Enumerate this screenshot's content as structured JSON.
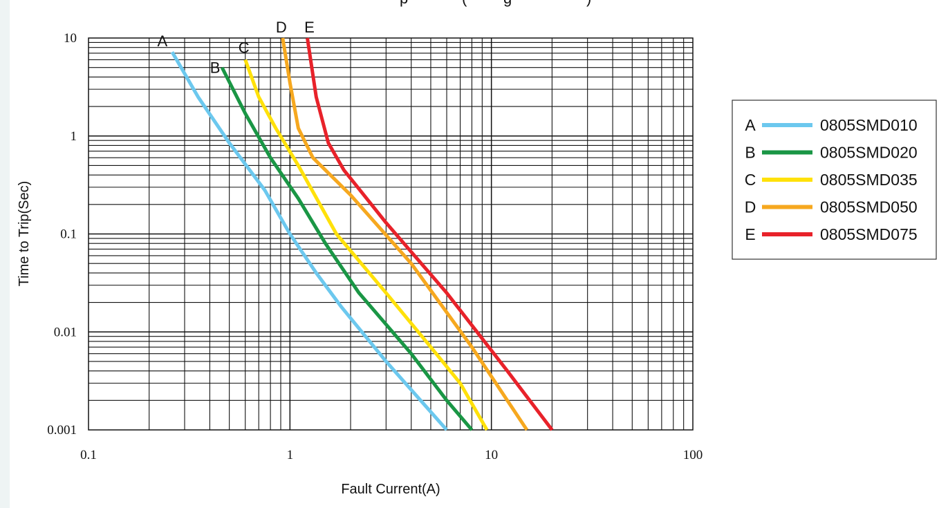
{
  "chart_data": {
    "type": "line",
    "title": "",
    "xlabel": "Fault Current(A)",
    "ylabel": "Time to Trip(Sec)",
    "x_scale": "log",
    "y_scale": "log",
    "xlim": [
      0.1,
      100
    ],
    "ylim": [
      0.001,
      10
    ],
    "grid": true,
    "legend_position": "right",
    "x_tick_labels": [
      "0.1",
      "1",
      "10",
      "100"
    ],
    "y_tick_labels": [
      "10",
      "1",
      "0.1",
      "0.01",
      "0.001"
    ],
    "series": [
      {
        "key": "A",
        "name": "0805SMD010",
        "color": "#6cc8ee",
        "points": [
          [
            0.26,
            7.2
          ],
          [
            0.35,
            2.5
          ],
          [
            0.5,
            0.85
          ],
          [
            0.75,
            0.28
          ],
          [
            1.0,
            0.1
          ],
          [
            1.35,
            0.04
          ],
          [
            1.8,
            0.018
          ],
          [
            3.0,
            0.005
          ],
          [
            6.0,
            0.001
          ]
        ]
      },
      {
        "key": "B",
        "name": "0805SMD020",
        "color": "#1a9645",
        "points": [
          [
            0.46,
            5.0
          ],
          [
            0.6,
            1.7
          ],
          [
            0.8,
            0.6
          ],
          [
            1.1,
            0.23
          ],
          [
            1.5,
            0.08
          ],
          [
            2.2,
            0.025
          ],
          [
            4.0,
            0.006
          ],
          [
            6.0,
            0.002
          ],
          [
            8.0,
            0.001
          ]
        ]
      },
      {
        "key": "C",
        "name": "0805SMD035",
        "color": "#ffe10a",
        "points": [
          [
            0.6,
            6.0
          ],
          [
            0.7,
            2.5
          ],
          [
            0.85,
            1.2
          ],
          [
            1.1,
            0.5
          ],
          [
            1.7,
            0.1
          ],
          [
            3.0,
            0.025
          ],
          [
            5.0,
            0.007
          ],
          [
            7.0,
            0.003
          ],
          [
            9.5,
            0.001
          ]
        ]
      },
      {
        "key": "D",
        "name": "0805SMD050",
        "color": "#f6a81f",
        "points": [
          [
            0.92,
            10.0
          ],
          [
            1.0,
            3.5
          ],
          [
            1.1,
            1.2
          ],
          [
            1.3,
            0.6
          ],
          [
            2.0,
            0.25
          ],
          [
            4.0,
            0.05
          ],
          [
            8.0,
            0.007
          ],
          [
            15.0,
            0.001
          ]
        ]
      },
      {
        "key": "E",
        "name": "0805SMD075",
        "color": "#e8222a",
        "points": [
          [
            1.22,
            10.0
          ],
          [
            1.35,
            2.5
          ],
          [
            1.55,
            0.85
          ],
          [
            1.85,
            0.45
          ],
          [
            3.0,
            0.13
          ],
          [
            6.0,
            0.025
          ],
          [
            12.0,
            0.004
          ],
          [
            20.0,
            0.001
          ]
        ]
      }
    ]
  }
}
